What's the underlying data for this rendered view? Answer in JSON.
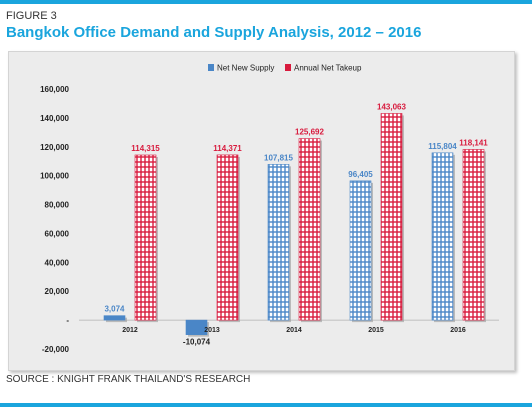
{
  "figure_label": "FIGURE 3",
  "title": "Bangkok Office Demand and Supply Analysis, 2012 – 2016",
  "source": "SOURCE : KNIGHT FRANK THAILAND'S RESEARCH",
  "colors": {
    "accent": "#1aa5dd",
    "supply": "#4a86c7",
    "takeup": "#d81a3d",
    "supply_label": "#4a86c7",
    "takeup_label": "#d81a3d"
  },
  "chart_data": {
    "type": "bar",
    "categories": [
      "2012",
      "2013",
      "2014",
      "2015",
      "2016"
    ],
    "series": [
      {
        "name": "Net New Supply",
        "values": [
          3074,
          -10074,
          107815,
          96405,
          115804
        ],
        "labels": [
          "3,074",
          "-10,074",
          "107,815",
          "96,405",
          "115,804"
        ]
      },
      {
        "name": "Annual Net Takeup",
        "values": [
          114315,
          114371,
          125692,
          143063,
          118141
        ],
        "labels": [
          "114,315",
          "114,371",
          "125,692",
          "143,063",
          "118,141"
        ]
      }
    ],
    "ylim": [
      -20000,
      160000
    ],
    "yticks": [
      {
        "value": 160000,
        "label": "160,000"
      },
      {
        "value": 140000,
        "label": "140,000"
      },
      {
        "value": 120000,
        "label": "120,000"
      },
      {
        "value": 100000,
        "label": "100,000"
      },
      {
        "value": 80000,
        "label": "80,000"
      },
      {
        "value": 60000,
        "label": "60,000"
      },
      {
        "value": 40000,
        "label": "40,000"
      },
      {
        "value": 20000,
        "label": "20,000"
      },
      {
        "value": 0,
        "label": "-"
      },
      {
        "value": -20000,
        "label": "-20,000"
      }
    ],
    "legend_position": "top-center",
    "grid": false
  }
}
